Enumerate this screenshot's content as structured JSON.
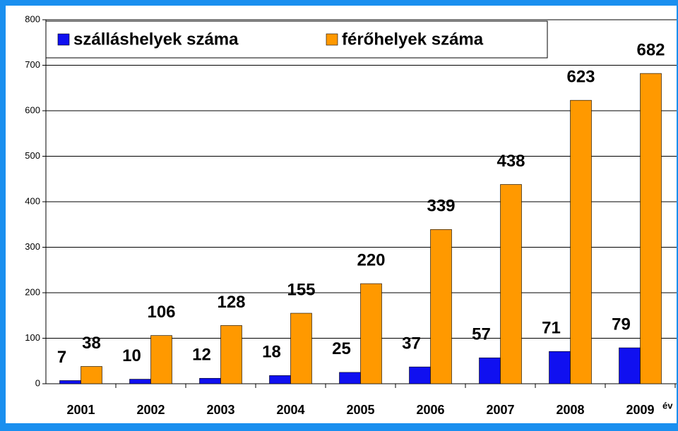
{
  "chart_data": {
    "type": "bar",
    "categories": [
      "2001",
      "2002",
      "2003",
      "2004",
      "2005",
      "2006",
      "2007",
      "2008",
      "2009"
    ],
    "x_label": "év",
    "series": [
      {
        "name": "szálláshelyek száma",
        "color": "#1010f0",
        "values": [
          7,
          10,
          12,
          18,
          25,
          37,
          57,
          71,
          79
        ]
      },
      {
        "name": "férőhelyek száma",
        "color": "#ff9900",
        "values": [
          38,
          106,
          128,
          155,
          220,
          339,
          438,
          623,
          682
        ]
      }
    ],
    "ylim": [
      0,
      800
    ],
    "yticks": [
      0,
      100,
      200,
      300,
      400,
      500,
      600,
      700,
      800
    ],
    "grid": true,
    "legend": "top-left"
  }
}
